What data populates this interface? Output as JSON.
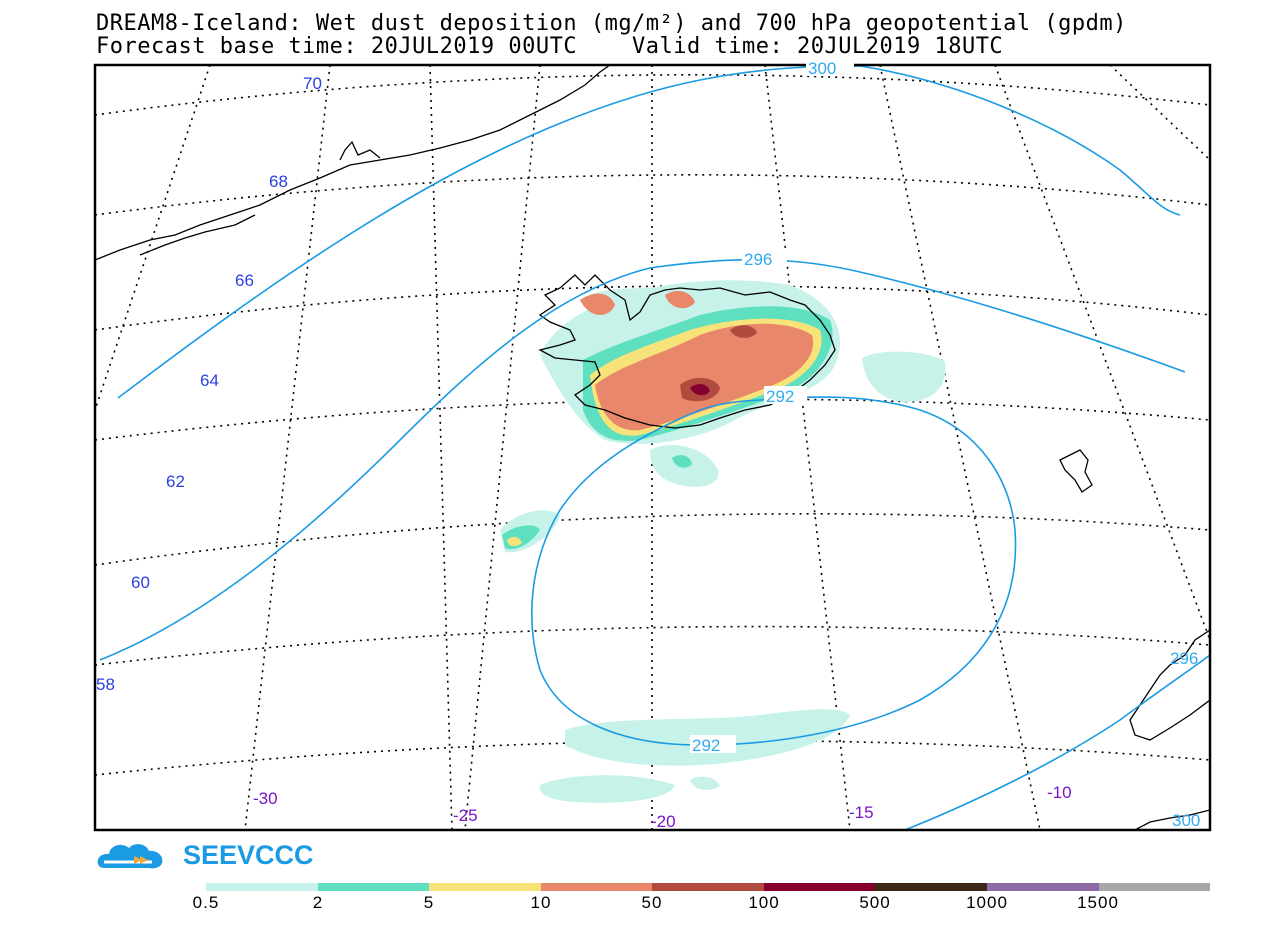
{
  "title": {
    "line1": "DREAM8-Iceland: Wet dust deposition (mg/m²) and 700 hPa geopotential (gpdm)",
    "line2": "Forecast base time: 20JUL2019 00UTC    Valid time: 20JUL2019 18UTC"
  },
  "map": {
    "latitude_labels": [
      "70",
      "68",
      "66",
      "64",
      "62",
      "60",
      "58"
    ],
    "longitude_labels": [
      "-30",
      "-25",
      "-20",
      "-15",
      "-10"
    ],
    "contour_labels": [
      "300",
      "296",
      "292",
      "292",
      "296",
      "300"
    ],
    "contour_color": "#1a9be3",
    "geopotential_levels_gpdm": [
      292,
      296,
      300
    ]
  },
  "logo": {
    "text": "SEEVCCC",
    "icon": "cloud-logo-icon",
    "color": "#1a9be3"
  },
  "colorbar": {
    "ticks": [
      "0.5",
      "2",
      "5",
      "10",
      "50",
      "100",
      "500",
      "1000",
      "1500"
    ],
    "colors": [
      "#c6f2ea",
      "#5ee0c0",
      "#f7e37a",
      "#e8876a",
      "#b14a3f",
      "#85002f",
      "#3e2714",
      "#8e6aa6",
      "#a7a7a7"
    ]
  }
}
